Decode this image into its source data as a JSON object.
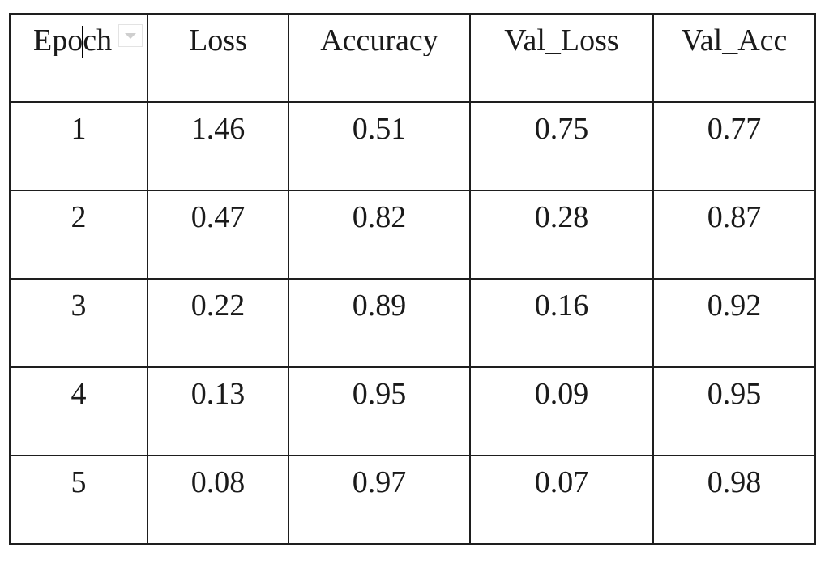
{
  "table": {
    "headers": [
      "Epoch",
      "Loss",
      "Accuracy",
      "Val_Loss",
      "Val_Acc"
    ],
    "rows": [
      [
        "1",
        "1.46",
        "0.51",
        "0.75",
        "0.77"
      ],
      [
        "2",
        "0.47",
        "0.82",
        "0.28",
        "0.87"
      ],
      [
        "3",
        "0.22",
        "0.89",
        "0.16",
        "0.92"
      ],
      [
        "4",
        "0.13",
        "0.95",
        "0.09",
        "0.95"
      ],
      [
        "5",
        "0.08",
        "0.97",
        "0.07",
        "0.98"
      ]
    ]
  },
  "icons": {
    "column_menu": "chevron-down-icon"
  },
  "colors": {
    "border": "#1e1e1e",
    "text": "#1a1a1a",
    "background": "#ffffff"
  }
}
